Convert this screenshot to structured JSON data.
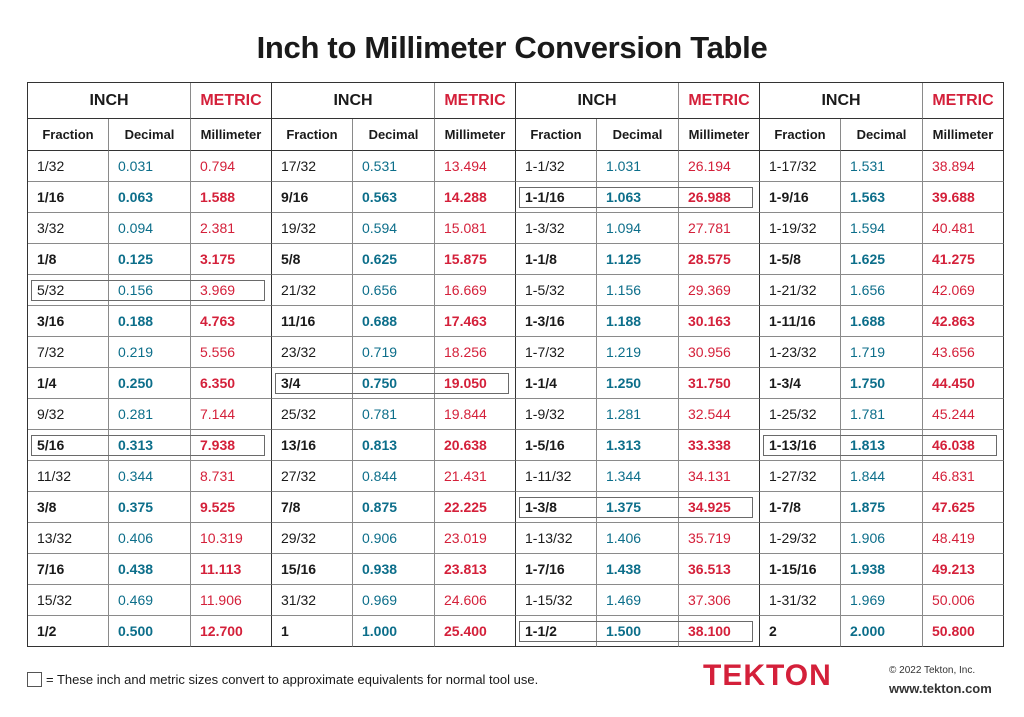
{
  "title": "Inch to Millimeter Conversion Table",
  "headers": {
    "inch": "INCH",
    "metric": "METRIC",
    "fraction": "Fraction",
    "decimal": "Decimal",
    "millimeter": "Millimeter"
  },
  "groups": [
    {
      "rows": [
        {
          "fraction": "1/32",
          "decimal": "0.031",
          "mm": "0.794",
          "bold": false,
          "boxed": false
        },
        {
          "fraction": "1/16",
          "decimal": "0.063",
          "mm": "1.588",
          "bold": true,
          "boxed": false
        },
        {
          "fraction": "3/32",
          "decimal": "0.094",
          "mm": "2.381",
          "bold": false,
          "boxed": false
        },
        {
          "fraction": "1/8",
          "decimal": "0.125",
          "mm": "3.175",
          "bold": true,
          "boxed": false
        },
        {
          "fraction": "5/32",
          "decimal": "0.156",
          "mm": "3.969",
          "bold": false,
          "boxed": true
        },
        {
          "fraction": "3/16",
          "decimal": "0.188",
          "mm": "4.763",
          "bold": true,
          "boxed": false
        },
        {
          "fraction": "7/32",
          "decimal": "0.219",
          "mm": "5.556",
          "bold": false,
          "boxed": false
        },
        {
          "fraction": "1/4",
          "decimal": "0.250",
          "mm": "6.350",
          "bold": true,
          "boxed": false
        },
        {
          "fraction": "9/32",
          "decimal": "0.281",
          "mm": "7.144",
          "bold": false,
          "boxed": false
        },
        {
          "fraction": "5/16",
          "decimal": "0.313",
          "mm": "7.938",
          "bold": true,
          "boxed": true
        },
        {
          "fraction": "11/32",
          "decimal": "0.344",
          "mm": "8.731",
          "bold": false,
          "boxed": false
        },
        {
          "fraction": "3/8",
          "decimal": "0.375",
          "mm": "9.525",
          "bold": true,
          "boxed": false
        },
        {
          "fraction": "13/32",
          "decimal": "0.406",
          "mm": "10.319",
          "bold": false,
          "boxed": false
        },
        {
          "fraction": "7/16",
          "decimal": "0.438",
          "mm": "11.113",
          "bold": true,
          "boxed": false
        },
        {
          "fraction": "15/32",
          "decimal": "0.469",
          "mm": "11.906",
          "bold": false,
          "boxed": false
        },
        {
          "fraction": "1/2",
          "decimal": "0.500",
          "mm": "12.700",
          "bold": true,
          "boxed": false
        }
      ]
    },
    {
      "rows": [
        {
          "fraction": "17/32",
          "decimal": "0.531",
          "mm": "13.494",
          "bold": false,
          "boxed": false
        },
        {
          "fraction": "9/16",
          "decimal": "0.563",
          "mm": "14.288",
          "bold": true,
          "boxed": false
        },
        {
          "fraction": "19/32",
          "decimal": "0.594",
          "mm": "15.081",
          "bold": false,
          "boxed": false
        },
        {
          "fraction": "5/8",
          "decimal": "0.625",
          "mm": "15.875",
          "bold": true,
          "boxed": false
        },
        {
          "fraction": "21/32",
          "decimal": "0.656",
          "mm": "16.669",
          "bold": false,
          "boxed": false
        },
        {
          "fraction": "11/16",
          "decimal": "0.688",
          "mm": "17.463",
          "bold": true,
          "boxed": false
        },
        {
          "fraction": "23/32",
          "decimal": "0.719",
          "mm": "18.256",
          "bold": false,
          "boxed": false
        },
        {
          "fraction": "3/4",
          "decimal": "0.750",
          "mm": "19.050",
          "bold": true,
          "boxed": true
        },
        {
          "fraction": "25/32",
          "decimal": "0.781",
          "mm": "19.844",
          "bold": false,
          "boxed": false
        },
        {
          "fraction": "13/16",
          "decimal": "0.813",
          "mm": "20.638",
          "bold": true,
          "boxed": false
        },
        {
          "fraction": "27/32",
          "decimal": "0.844",
          "mm": "21.431",
          "bold": false,
          "boxed": false
        },
        {
          "fraction": "7/8",
          "decimal": "0.875",
          "mm": "22.225",
          "bold": true,
          "boxed": false
        },
        {
          "fraction": "29/32",
          "decimal": "0.906",
          "mm": "23.019",
          "bold": false,
          "boxed": false
        },
        {
          "fraction": "15/16",
          "decimal": "0.938",
          "mm": "23.813",
          "bold": true,
          "boxed": false
        },
        {
          "fraction": "31/32",
          "decimal": "0.969",
          "mm": "24.606",
          "bold": false,
          "boxed": false
        },
        {
          "fraction": "1",
          "decimal": "1.000",
          "mm": "25.400",
          "bold": true,
          "boxed": false
        }
      ]
    },
    {
      "rows": [
        {
          "fraction": "1-1/32",
          "decimal": "1.031",
          "mm": "26.194",
          "bold": false,
          "boxed": false
        },
        {
          "fraction": "1-1/16",
          "decimal": "1.063",
          "mm": "26.988",
          "bold": true,
          "boxed": true
        },
        {
          "fraction": "1-3/32",
          "decimal": "1.094",
          "mm": "27.781",
          "bold": false,
          "boxed": false
        },
        {
          "fraction": "1-1/8",
          "decimal": "1.125",
          "mm": "28.575",
          "bold": true,
          "boxed": false
        },
        {
          "fraction": "1-5/32",
          "decimal": "1.156",
          "mm": "29.369",
          "bold": false,
          "boxed": false
        },
        {
          "fraction": "1-3/16",
          "decimal": "1.188",
          "mm": "30.163",
          "bold": true,
          "boxed": false
        },
        {
          "fraction": "1-7/32",
          "decimal": "1.219",
          "mm": "30.956",
          "bold": false,
          "boxed": false
        },
        {
          "fraction": "1-1/4",
          "decimal": "1.250",
          "mm": "31.750",
          "bold": true,
          "boxed": false
        },
        {
          "fraction": "1-9/32",
          "decimal": "1.281",
          "mm": "32.544",
          "bold": false,
          "boxed": false
        },
        {
          "fraction": "1-5/16",
          "decimal": "1.313",
          "mm": "33.338",
          "bold": true,
          "boxed": false
        },
        {
          "fraction": "1-11/32",
          "decimal": "1.344",
          "mm": "34.131",
          "bold": false,
          "boxed": false
        },
        {
          "fraction": "1-3/8",
          "decimal": "1.375",
          "mm": "34.925",
          "bold": true,
          "boxed": true
        },
        {
          "fraction": "1-13/32",
          "decimal": "1.406",
          "mm": "35.719",
          "bold": false,
          "boxed": false
        },
        {
          "fraction": "1-7/16",
          "decimal": "1.438",
          "mm": "36.513",
          "bold": true,
          "boxed": false
        },
        {
          "fraction": "1-15/32",
          "decimal": "1.469",
          "mm": "37.306",
          "bold": false,
          "boxed": false
        },
        {
          "fraction": "1-1/2",
          "decimal": "1.500",
          "mm": "38.100",
          "bold": true,
          "boxed": true
        }
      ]
    },
    {
      "rows": [
        {
          "fraction": "1-17/32",
          "decimal": "1.531",
          "mm": "38.894",
          "bold": false,
          "boxed": false
        },
        {
          "fraction": "1-9/16",
          "decimal": "1.563",
          "mm": "39.688",
          "bold": true,
          "boxed": false
        },
        {
          "fraction": "1-19/32",
          "decimal": "1.594",
          "mm": "40.481",
          "bold": false,
          "boxed": false
        },
        {
          "fraction": "1-5/8",
          "decimal": "1.625",
          "mm": "41.275",
          "bold": true,
          "boxed": false
        },
        {
          "fraction": "1-21/32",
          "decimal": "1.656",
          "mm": "42.069",
          "bold": false,
          "boxed": false
        },
        {
          "fraction": "1-11/16",
          "decimal": "1.688",
          "mm": "42.863",
          "bold": true,
          "boxed": false
        },
        {
          "fraction": "1-23/32",
          "decimal": "1.719",
          "mm": "43.656",
          "bold": false,
          "boxed": false
        },
        {
          "fraction": "1-3/4",
          "decimal": "1.750",
          "mm": "44.450",
          "bold": true,
          "boxed": false
        },
        {
          "fraction": "1-25/32",
          "decimal": "1.781",
          "mm": "45.244",
          "bold": false,
          "boxed": false
        },
        {
          "fraction": "1-13/16",
          "decimal": "1.813",
          "mm": "46.038",
          "bold": true,
          "boxed": true
        },
        {
          "fraction": "1-27/32",
          "decimal": "1.844",
          "mm": "46.831",
          "bold": false,
          "boxed": false
        },
        {
          "fraction": "1-7/8",
          "decimal": "1.875",
          "mm": "47.625",
          "bold": true,
          "boxed": false
        },
        {
          "fraction": "1-29/32",
          "decimal": "1.906",
          "mm": "48.419",
          "bold": false,
          "boxed": false
        },
        {
          "fraction": "1-15/16",
          "decimal": "1.938",
          "mm": "49.213",
          "bold": true,
          "boxed": false
        },
        {
          "fraction": "1-31/32",
          "decimal": "1.969",
          "mm": "50.006",
          "bold": false,
          "boxed": false
        },
        {
          "fraction": "2",
          "decimal": "2.000",
          "mm": "50.800",
          "bold": true,
          "boxed": false
        }
      ]
    }
  ],
  "footer": {
    "legend_text": "= These inch and metric sizes convert to approximate equivalents for normal tool use.",
    "logo": "TEKTON",
    "copyright": "© 2022 Tekton, Inc.",
    "url": "www.tekton.com"
  },
  "colors": {
    "metric_red": "#d4203a",
    "decimal_teal": "#0c6e8a",
    "text_dark": "#1a1a1a"
  }
}
